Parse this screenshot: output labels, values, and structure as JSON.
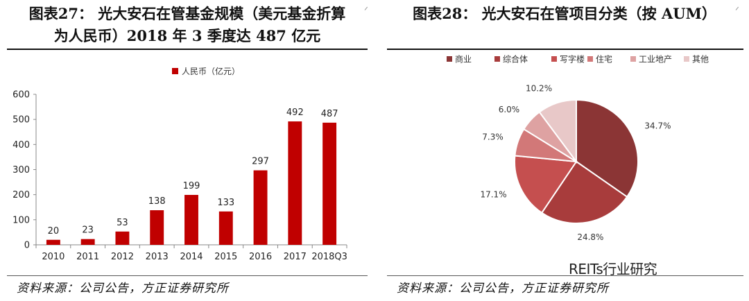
{
  "left": {
    "title_line1": "图表27：  光大安石在管基金规模（美元基金折算",
    "title_line2": "为人民币）2018 年 3 季度达 487 亿元",
    "source": "资料来源：公司公告，方正证券研究所"
  },
  "right": {
    "title": "图表28：  光大安石在管项目分类（按 AUM）",
    "source": "资料来源：公司公告，方正证券研究所"
  },
  "corner_marks": {
    "left": "ᐟ",
    "right": "ᐟ"
  },
  "watermark": "REITs行业研究",
  "colors": {
    "bar": "#c00000",
    "pie": [
      "#8b3535",
      "#a83c3c",
      "#c54f4f",
      "#d27878",
      "#dea2a2",
      "#e8c8c8"
    ]
  },
  "chart_data": [
    {
      "type": "bar",
      "categories": [
        "2010",
        "2011",
        "2012",
        "2013",
        "2014",
        "2015",
        "2016",
        "2017",
        "2018Q3"
      ],
      "series": [
        {
          "name": "人民币（亿元）",
          "values": [
            20,
            23,
            53,
            138,
            199,
            133,
            297,
            492,
            487
          ]
        }
      ],
      "data_labels": [
        "20",
        "23",
        "53",
        "138",
        "199",
        "133",
        "297",
        "492",
        "487"
      ],
      "yticks": [
        "0",
        "100",
        "200",
        "300",
        "400",
        "500",
        "600"
      ],
      "ylim": [
        0,
        600
      ],
      "legend_position": "top",
      "grid": false
    },
    {
      "type": "pie",
      "labels": [
        "商业",
        "综合体",
        "写字楼",
        "住宅",
        "工业地产",
        "其他"
      ],
      "values": [
        34.7,
        24.8,
        17.1,
        7.3,
        6.0,
        10.2
      ],
      "data_labels": [
        "34.7%",
        "24.8%",
        "17.1%",
        "7.3%",
        "6.0%",
        "10.2%"
      ],
      "legend_position": "top"
    }
  ]
}
